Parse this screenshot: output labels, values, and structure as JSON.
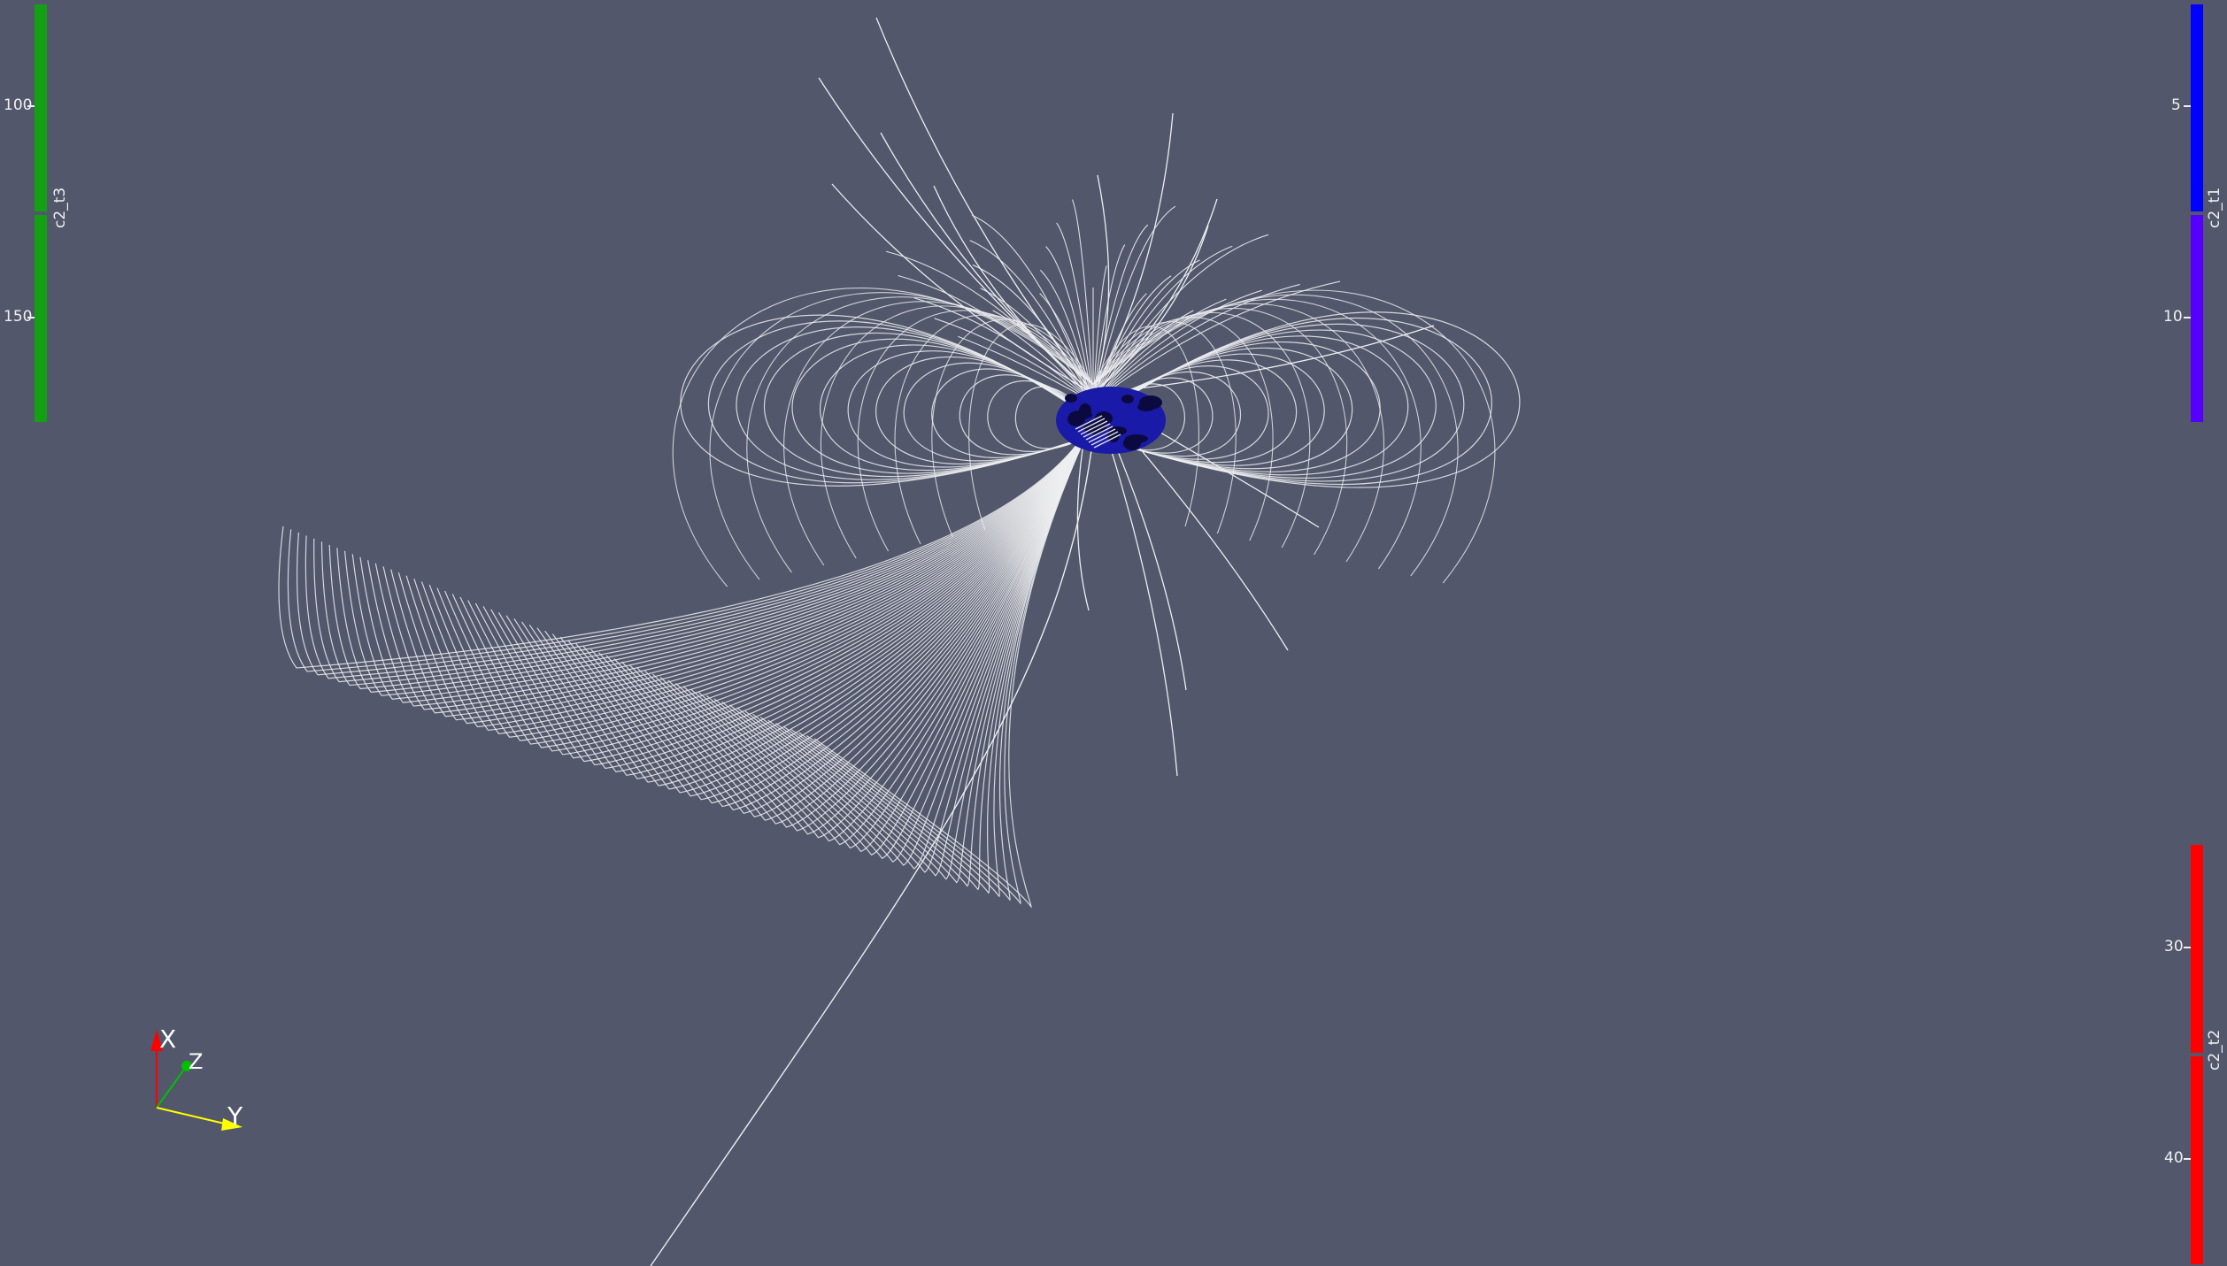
{
  "scene": {
    "background": "#52576b",
    "line_color": "#ffffff",
    "core_color": "#1a1aa8"
  },
  "colorbars": {
    "left": {
      "title": "c2_t3",
      "ticks": [
        "100",
        "150"
      ],
      "color_top": "#14a014",
      "color_bottom": "#14a014"
    },
    "right_top": {
      "title": "c2_t1",
      "ticks": [
        "5",
        "10"
      ],
      "color_top": "#0000ff",
      "color_bottom": "#5500ff"
    },
    "right_bottom": {
      "title": "c2_t2",
      "ticks": [
        "30",
        "40"
      ],
      "color_top": "#ff0000",
      "color_bottom": "#ff0000"
    }
  },
  "axes": {
    "x_label": "X",
    "y_label": "Y",
    "z_label": "Z",
    "x_color": "#ff0000",
    "y_color": "#ffff00",
    "z_color": "#00c000"
  }
}
